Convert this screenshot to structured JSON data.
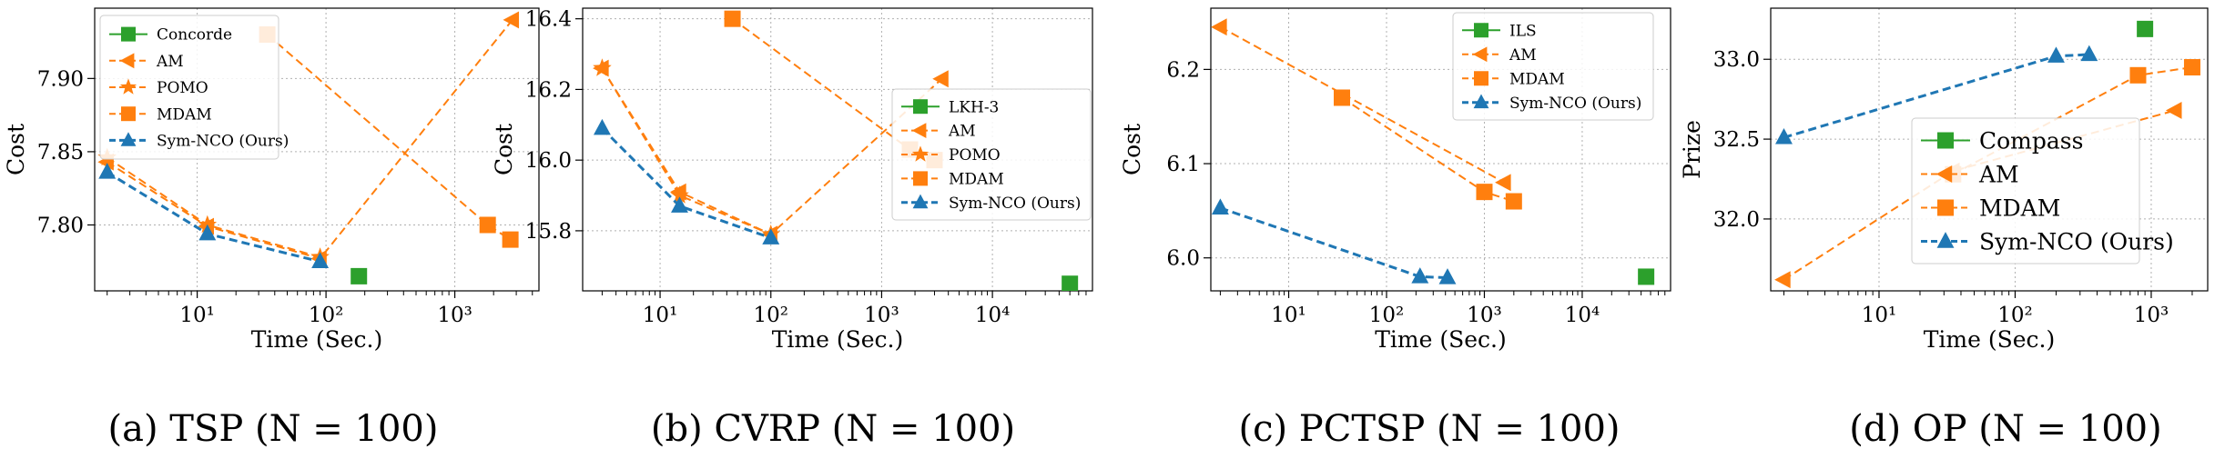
{
  "colors": {
    "green": "#2ca02c",
    "orange": "#ff7f0e",
    "blue": "#1f77b4"
  },
  "chart_data": [
    {
      "type": "scatter",
      "caption": "(a) TSP (N = 100)",
      "xlabel": "Time (Sec.)",
      "ylabel": "Cost",
      "xscale": "log",
      "xlim": [
        1.6,
        4500
      ],
      "ylim": [
        7.755,
        7.948
      ],
      "grid": true,
      "legend_position": "top-left",
      "yticks": [
        7.8,
        7.85,
        7.9
      ],
      "ytick_labels": [
        "7.80",
        "7.85",
        "7.90"
      ],
      "xticks": [
        10,
        100,
        1000
      ],
      "xtick_labels": [
        "10¹",
        "10²",
        "10³"
      ],
      "series": [
        {
          "name": "Concorde",
          "marker": "square",
          "color": "green",
          "dashed": false,
          "points": [
            [
              180,
              7.765
            ]
          ]
        },
        {
          "name": "AM",
          "marker": "tri-left",
          "color": "orange",
          "dashed": true,
          "points": [
            [
              2,
              7.843
            ],
            [
              12,
              7.799
            ],
            [
              90,
              7.777
            ],
            [
              2800,
              7.94
            ]
          ]
        },
        {
          "name": "POMO",
          "marker": "star",
          "color": "orange",
          "dashed": true,
          "points": [
            [
              2,
              7.846
            ],
            [
              12,
              7.8
            ],
            [
              90,
              7.778
            ]
          ]
        },
        {
          "name": "MDAM",
          "marker": "square",
          "color": "orange",
          "dashed": true,
          "points": [
            [
              35,
              7.93
            ],
            [
              1800,
              7.8
            ],
            [
              2700,
              7.79
            ]
          ]
        },
        {
          "name": "Sym-NCO (Ours)",
          "marker": "tri-up",
          "color": "blue",
          "dashed": true,
          "points": [
            [
              2,
              7.836
            ],
            [
              12,
              7.794
            ],
            [
              90,
              7.775
            ]
          ]
        }
      ]
    },
    {
      "type": "scatter",
      "caption": "(b) CVRP (N = 100)",
      "xlabel": "Time (Sec.)",
      "ylabel": "Cost",
      "xscale": "log",
      "xlim": [
        2,
        80000
      ],
      "ylim": [
        15.63,
        16.43
      ],
      "grid": true,
      "legend_position": "center-right",
      "yticks": [
        15.8,
        16.0,
        16.2,
        16.4
      ],
      "ytick_labels": [
        "15.8",
        "16.0",
        "16.2",
        "16.4"
      ],
      "xticks": [
        10,
        100,
        1000,
        10000
      ],
      "xtick_labels": [
        "10¹",
        "10²",
        "10³",
        "10⁴"
      ],
      "series": [
        {
          "name": "LKH-3",
          "marker": "square",
          "color": "green",
          "dashed": false,
          "points": [
            [
              50000,
              15.65
            ]
          ]
        },
        {
          "name": "AM",
          "marker": "tri-left",
          "color": "orange",
          "dashed": true,
          "points": [
            [
              3,
              16.26
            ],
            [
              15,
              15.91
            ],
            [
              100,
              15.79
            ],
            [
              3500,
              16.23
            ]
          ]
        },
        {
          "name": "POMO",
          "marker": "star",
          "color": "orange",
          "dashed": true,
          "points": [
            [
              3,
              16.26
            ],
            [
              15,
              15.9
            ],
            [
              100,
              15.79
            ]
          ]
        },
        {
          "name": "MDAM",
          "marker": "square",
          "color": "orange",
          "dashed": true,
          "points": [
            [
              45,
              16.4
            ],
            [
              1800,
              16.03
            ],
            [
              3000,
              16.0
            ]
          ]
        },
        {
          "name": "Sym-NCO (Ours)",
          "marker": "tri-up",
          "color": "blue",
          "dashed": true,
          "points": [
            [
              3,
              16.09
            ],
            [
              15,
              15.87
            ],
            [
              100,
              15.78
            ]
          ]
        }
      ]
    },
    {
      "type": "scatter",
      "caption": "(c) PCTSP (N = 100)",
      "xlabel": "Time (Sec.)",
      "ylabel": "Cost",
      "xscale": "log",
      "xlim": [
        1.6,
        80000
      ],
      "ylim": [
        5.965,
        6.265
      ],
      "grid": true,
      "legend_position": "top-right",
      "yticks": [
        6.0,
        6.1,
        6.2
      ],
      "ytick_labels": [
        "6.0",
        "6.1",
        "6.2"
      ],
      "xticks": [
        10,
        100,
        1000,
        10000
      ],
      "xtick_labels": [
        "10¹",
        "10²",
        "10³",
        "10⁴"
      ],
      "series": [
        {
          "name": "ILS",
          "marker": "square",
          "color": "green",
          "dashed": false,
          "points": [
            [
              45000,
              5.98
            ]
          ]
        },
        {
          "name": "AM",
          "marker": "tri-left",
          "color": "orange",
          "dashed": true,
          "points": [
            [
              2,
              6.245
            ],
            [
              1600,
              6.08
            ]
          ]
        },
        {
          "name": "MDAM",
          "marker": "square",
          "color": "orange",
          "dashed": true,
          "points": [
            [
              35,
              6.17
            ],
            [
              1000,
              6.07
            ],
            [
              2000,
              6.06
            ]
          ]
        },
        {
          "name": "Sym-NCO (Ours)",
          "marker": "tri-up",
          "color": "blue",
          "dashed": true,
          "points": [
            [
              2,
              6.053
            ],
            [
              220,
              5.98
            ],
            [
              420,
              5.979
            ]
          ]
        }
      ]
    },
    {
      "type": "scatter",
      "caption": "(d) OP (N = 100)",
      "xlabel": "Time (Sec.)",
      "ylabel": "Prize",
      "xscale": "log",
      "xlim": [
        1.6,
        2600
      ],
      "ylim": [
        31.55,
        33.32
      ],
      "grid": true,
      "legend_position": "center-right",
      "yticks": [
        32.0,
        32.5,
        33.0
      ],
      "ytick_labels": [
        "32.0",
        "32.5",
        "33.0"
      ],
      "xticks": [
        10,
        100,
        1000
      ],
      "xtick_labels": [
        "10¹",
        "10²",
        "10³"
      ],
      "series": [
        {
          "name": "Compass",
          "marker": "square",
          "color": "green",
          "dashed": false,
          "points": [
            [
              900,
              33.19
            ]
          ]
        },
        {
          "name": "AM",
          "marker": "tri-left",
          "color": "orange",
          "dashed": true,
          "points": [
            [
              2,
              31.62
            ],
            [
              35,
              32.3
            ],
            [
              1500,
              32.68
            ]
          ]
        },
        {
          "name": "MDAM",
          "marker": "square",
          "color": "orange",
          "dashed": true,
          "points": [
            [
              35,
              32.28
            ],
            [
              800,
              32.9
            ],
            [
              2000,
              32.95
            ]
          ]
        },
        {
          "name": "Sym-NCO (Ours)",
          "marker": "tri-up",
          "color": "blue",
          "dashed": true,
          "points": [
            [
              2,
              32.51
            ],
            [
              200,
              33.02
            ],
            [
              350,
              33.03
            ]
          ]
        }
      ]
    }
  ]
}
